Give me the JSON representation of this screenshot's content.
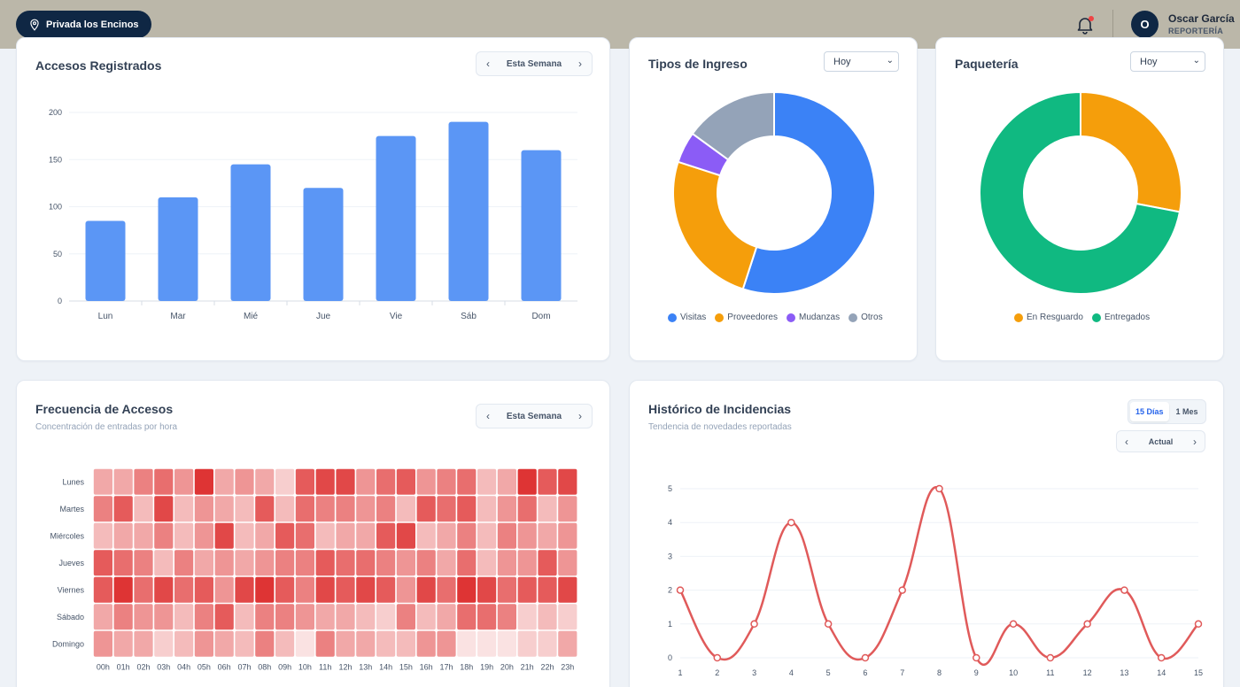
{
  "topbar": {
    "location": "Privada los Encinos",
    "user_initial": "O",
    "user_name": "Oscar García",
    "user_role": "REPORTERÍA"
  },
  "colors": {
    "navy": "#0f2744",
    "blue": "#3b82f6",
    "bar": "#5b96f5",
    "orange": "#f59e0b",
    "purple": "#8b5cf6",
    "gray": "#94a3b8",
    "green": "#10b981",
    "red": "#e05a5a"
  },
  "accesos": {
    "title": "Accesos Registrados",
    "nav_label": "Esta Semana",
    "chart_data": {
      "type": "bar",
      "title": "Accesos Registrados",
      "categories": [
        "Lun",
        "Mar",
        "Mié",
        "Jue",
        "Vie",
        "Sáb",
        "Dom"
      ],
      "values": [
        85,
        110,
        145,
        120,
        175,
        190,
        160
      ],
      "ylim": [
        0,
        200
      ],
      "yticks": [
        0,
        50,
        100,
        150,
        200
      ],
      "grid": true
    }
  },
  "tipos": {
    "title": "Tipos de Ingreso",
    "select_value": "Hoy",
    "chart_data": {
      "type": "pie",
      "donut": true,
      "title": "Tipos de Ingreso",
      "labels": [
        "Visitas",
        "Proveedores",
        "Mudanzas",
        "Otros"
      ],
      "values": [
        55,
        25,
        5,
        15
      ],
      "colors": [
        "#3b82f6",
        "#f59e0b",
        "#8b5cf6",
        "#94a3b8"
      ],
      "legend": "bottom"
    }
  },
  "paqueteria": {
    "title": "Paquetería",
    "select_value": "Hoy",
    "chart_data": {
      "type": "pie",
      "donut": true,
      "title": "Paquetería",
      "labels": [
        "En Resguardo",
        "Entregados"
      ],
      "values": [
        28,
        72
      ],
      "colors": [
        "#f59e0b",
        "#10b981"
      ],
      "legend": "bottom"
    }
  },
  "frecuencia": {
    "title": "Frecuencia de Accesos",
    "subtitle": "Concentración de entradas por hora",
    "nav_label": "Esta Semana",
    "chart_data": {
      "type": "heatmap",
      "title": "Frecuencia de Accesos",
      "rows": [
        "Lunes",
        "Martes",
        "Miércoles",
        "Jueves",
        "Viernes",
        "Sábado",
        "Domingo"
      ],
      "cols": [
        "00h",
        "01h",
        "02h",
        "03h",
        "04h",
        "05h",
        "06h",
        "07h",
        "08h",
        "09h",
        "10h",
        "11h",
        "12h",
        "13h",
        "14h",
        "15h",
        "16h",
        "17h",
        "18h",
        "19h",
        "20h",
        "21h",
        "22h",
        "23h"
      ],
      "values": [
        [
          3,
          3,
          5,
          6,
          4,
          9,
          3,
          4,
          3,
          1,
          7,
          8,
          8,
          4,
          6,
          7,
          4,
          5,
          6,
          2,
          3,
          9,
          7,
          8
        ],
        [
          5,
          7,
          2,
          8,
          2,
          4,
          3,
          2,
          7,
          2,
          6,
          5,
          5,
          4,
          5,
          2,
          7,
          6,
          7,
          2,
          4,
          6,
          2,
          4
        ],
        [
          2,
          3,
          3,
          5,
          2,
          4,
          8,
          2,
          3,
          7,
          6,
          2,
          3,
          3,
          7,
          8,
          2,
          3,
          5,
          2,
          5,
          4,
          3,
          4
        ],
        [
          7,
          6,
          5,
          2,
          5,
          3,
          4,
          3,
          4,
          5,
          5,
          7,
          6,
          6,
          5,
          4,
          5,
          3,
          6,
          2,
          4,
          4,
          7,
          4
        ],
        [
          7,
          9,
          6,
          8,
          6,
          7,
          4,
          8,
          9,
          7,
          5,
          8,
          7,
          8,
          7,
          4,
          8,
          6,
          9,
          8,
          6,
          7,
          7,
          8
        ],
        [
          3,
          5,
          4,
          4,
          2,
          5,
          7,
          2,
          5,
          5,
          4,
          3,
          3,
          2,
          1,
          5,
          2,
          3,
          6,
          6,
          5,
          1,
          2,
          1
        ],
        [
          4,
          3,
          3,
          1,
          2,
          4,
          3,
          2,
          5,
          2,
          0,
          5,
          3,
          3,
          2,
          2,
          4,
          4,
          0,
          0,
          0,
          1,
          1,
          3
        ]
      ],
      "vmin": 0,
      "vmax": 9
    }
  },
  "historico": {
    "title": "Histórico de Incidencias",
    "subtitle": "Tendencia de novedades reportadas",
    "seg_options": [
      "15 Días",
      "1 Mes"
    ],
    "nav_label": "Actual",
    "chart_data": {
      "type": "line",
      "title": "Histórico de Incidencias",
      "x": [
        1,
        2,
        3,
        4,
        5,
        6,
        7,
        8,
        9,
        10,
        11,
        12,
        13,
        14,
        15
      ],
      "values": [
        2,
        0,
        1,
        4,
        1,
        0,
        2,
        5,
        0,
        1,
        0,
        1,
        2,
        0,
        1
      ],
      "ylim": [
        0,
        5
      ],
      "yticks": [
        0,
        1,
        2,
        3,
        4,
        5
      ],
      "smooth": true,
      "grid": true
    }
  }
}
